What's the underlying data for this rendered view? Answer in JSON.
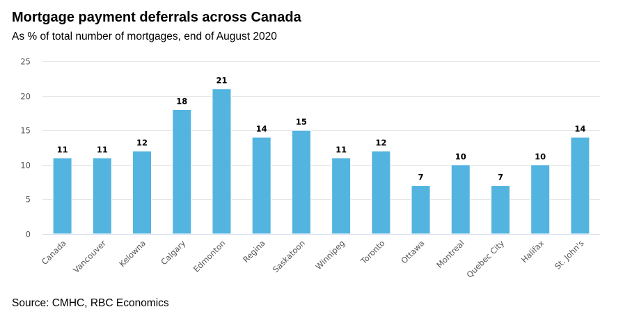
{
  "header": {
    "title": "Mortgage payment deferrals across Canada",
    "subtitle": "As % of total number of mortgages, end of August 2020"
  },
  "footer": {
    "source": "Source: CMHC, RBC Economics"
  },
  "colors": {
    "bar": "#54b4e0",
    "grid": "#e6e6e6",
    "baseline": "#ccd6eb"
  },
  "chart_data": {
    "type": "bar",
    "title": "Mortgage payment deferrals across Canada",
    "subtitle": "As % of total number of mortgages, end of August 2020",
    "xlabel": "",
    "ylabel": "",
    "categories": [
      "Canada",
      "Vancouver",
      "Kelowna",
      "Calgary",
      "Edmonton",
      "Regina",
      "Saskatoon",
      "Winnipeg",
      "Toronto",
      "Ottawa",
      "Montreal",
      "Quebec City",
      "Halifax",
      "St. John's"
    ],
    "values": [
      11,
      11,
      12,
      18,
      21,
      14,
      15,
      11,
      12,
      7,
      10,
      7,
      10,
      14
    ],
    "ylim": [
      0,
      25
    ],
    "yticks": [
      0,
      5,
      10,
      15,
      20,
      25
    ],
    "grid": true,
    "legend": "none",
    "data_labels": true
  }
}
